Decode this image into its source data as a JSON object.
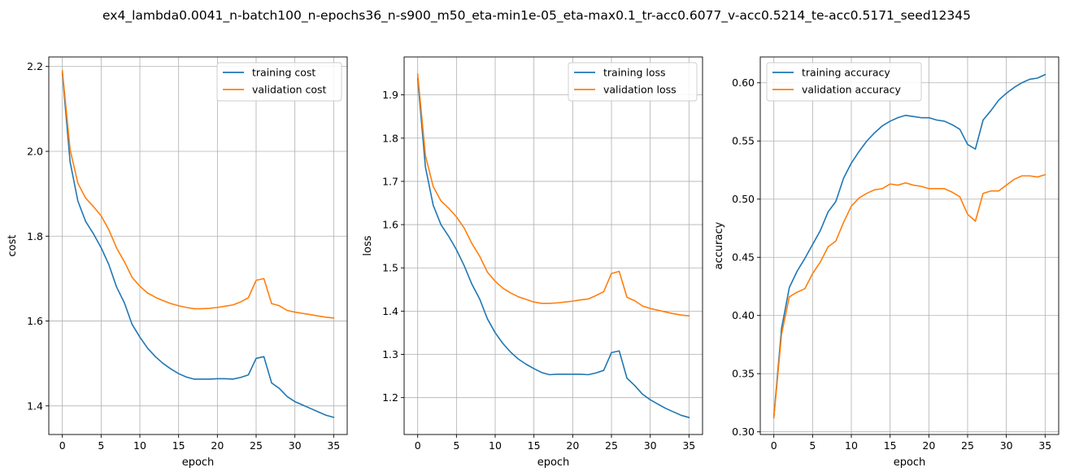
{
  "figure": {
    "title": "ex4_lambda0.0041_n-batch100_n-epochs36_n-s900_m50_eta-min1e-05_eta-max0.1_tr-acc0.6077_v-acc0.5214_te-acc0.5171_seed12345"
  },
  "colors": {
    "training": "#1f77b4",
    "validation": "#ff7f0e",
    "grid": "#b0b0b0"
  },
  "chart_data": [
    {
      "type": "line",
      "xlabel": "epoch",
      "ylabel": "cost",
      "xlim": [
        -1.75,
        36.75
      ],
      "ylim": [
        1.3325,
        2.2225
      ],
      "xticks": [
        0,
        5,
        10,
        15,
        20,
        25,
        30,
        35
      ],
      "yticks": [
        1.4,
        1.6,
        1.8,
        2.0,
        2.2
      ],
      "grid": true,
      "legend_position": "upper right",
      "x": [
        0,
        1,
        2,
        3,
        4,
        5,
        6,
        7,
        8,
        9,
        10,
        11,
        12,
        13,
        14,
        15,
        16,
        17,
        18,
        19,
        20,
        21,
        22,
        23,
        24,
        25,
        26,
        27,
        28,
        29,
        30,
        31,
        32,
        33,
        34,
        35
      ],
      "series": [
        {
          "name": "training cost",
          "color_key": "training",
          "values": [
            2.185,
            1.975,
            1.883,
            1.835,
            1.806,
            1.773,
            1.733,
            1.68,
            1.643,
            1.592,
            1.562,
            1.536,
            1.516,
            1.5,
            1.487,
            1.476,
            1.468,
            1.463,
            1.463,
            1.463,
            1.464,
            1.464,
            1.463,
            1.467,
            1.473,
            1.512,
            1.516,
            1.454,
            1.441,
            1.422,
            1.41,
            1.402,
            1.394,
            1.386,
            1.378,
            1.373
          ]
        },
        {
          "name": "validation cost",
          "color_key": "validation",
          "values": [
            2.19,
            2.004,
            1.925,
            1.89,
            1.87,
            1.848,
            1.815,
            1.772,
            1.74,
            1.703,
            1.682,
            1.666,
            1.656,
            1.648,
            1.641,
            1.636,
            1.632,
            1.629,
            1.629,
            1.63,
            1.632,
            1.635,
            1.638,
            1.645,
            1.655,
            1.696,
            1.7,
            1.641,
            1.636,
            1.625,
            1.621,
            1.618,
            1.615,
            1.612,
            1.609,
            1.607
          ]
        }
      ]
    },
    {
      "type": "line",
      "xlabel": "epoch",
      "ylabel": "loss",
      "xlim": [
        -1.75,
        36.75
      ],
      "ylim": [
        1.1147,
        1.9877
      ],
      "xticks": [
        0,
        5,
        10,
        15,
        20,
        25,
        30,
        35
      ],
      "yticks": [
        1.2,
        1.3,
        1.4,
        1.5,
        1.6,
        1.7,
        1.8,
        1.9
      ],
      "grid": true,
      "legend_position": "upper right",
      "x": [
        0,
        1,
        2,
        3,
        4,
        5,
        6,
        7,
        8,
        9,
        10,
        11,
        12,
        13,
        14,
        15,
        16,
        17,
        18,
        19,
        20,
        21,
        22,
        23,
        24,
        25,
        26,
        27,
        28,
        29,
        30,
        31,
        32,
        33,
        34,
        35
      ],
      "series": [
        {
          "name": "training loss",
          "color_key": "training",
          "values": [
            1.938,
            1.733,
            1.645,
            1.6,
            1.573,
            1.542,
            1.505,
            1.462,
            1.428,
            1.382,
            1.35,
            1.325,
            1.305,
            1.289,
            1.277,
            1.267,
            1.258,
            1.253,
            1.254,
            1.254,
            1.254,
            1.254,
            1.253,
            1.257,
            1.263,
            1.304,
            1.308,
            1.245,
            1.228,
            1.208,
            1.195,
            1.185,
            1.175,
            1.167,
            1.159,
            1.154
          ]
        },
        {
          "name": "validation loss",
          "color_key": "validation",
          "values": [
            1.948,
            1.76,
            1.688,
            1.655,
            1.638,
            1.618,
            1.592,
            1.556,
            1.527,
            1.49,
            1.469,
            1.453,
            1.442,
            1.433,
            1.427,
            1.421,
            1.418,
            1.418,
            1.419,
            1.421,
            1.423,
            1.426,
            1.428,
            1.436,
            1.445,
            1.487,
            1.492,
            1.432,
            1.424,
            1.412,
            1.406,
            1.402,
            1.398,
            1.394,
            1.391,
            1.389
          ]
        }
      ]
    },
    {
      "type": "line",
      "xlabel": "epoch",
      "ylabel": "accuracy",
      "xlim": [
        -1.75,
        36.75
      ],
      "ylim": [
        0.2977,
        0.6222
      ],
      "xticks": [
        0,
        5,
        10,
        15,
        20,
        25,
        30,
        35
      ],
      "yticks": [
        0.3,
        0.35,
        0.4,
        0.45,
        0.5,
        0.55,
        0.6
      ],
      "ytick_labels": [
        "0.30",
        "0.35",
        "0.40",
        "0.45",
        "0.50",
        "0.55",
        "0.60"
      ],
      "grid": true,
      "legend_position": "upper left",
      "x": [
        0,
        1,
        2,
        3,
        4,
        5,
        6,
        7,
        8,
        9,
        10,
        11,
        12,
        13,
        14,
        15,
        16,
        17,
        18,
        19,
        20,
        21,
        22,
        23,
        24,
        25,
        26,
        27,
        28,
        29,
        30,
        31,
        32,
        33,
        34,
        35
      ],
      "series": [
        {
          "name": "training accuracy",
          "color_key": "training",
          "values": [
            0.313,
            0.389,
            0.424,
            0.438,
            0.449,
            0.461,
            0.473,
            0.489,
            0.498,
            0.518,
            0.531,
            0.541,
            0.55,
            0.557,
            0.563,
            0.567,
            0.57,
            0.572,
            0.571,
            0.57,
            0.57,
            0.568,
            0.567,
            0.564,
            0.56,
            0.547,
            0.543,
            0.568,
            0.576,
            0.585,
            0.591,
            0.596,
            0.6,
            0.603,
            0.604,
            0.607
          ]
        },
        {
          "name": "validation accuracy",
          "color_key": "validation",
          "values": [
            0.312,
            0.384,
            0.416,
            0.42,
            0.423,
            0.436,
            0.446,
            0.459,
            0.464,
            0.48,
            0.494,
            0.501,
            0.505,
            0.508,
            0.509,
            0.513,
            0.512,
            0.514,
            0.512,
            0.511,
            0.509,
            0.509,
            0.509,
            0.506,
            0.502,
            0.487,
            0.481,
            0.505,
            0.507,
            0.507,
            0.512,
            0.517,
            0.52,
            0.52,
            0.519,
            0.521
          ]
        }
      ]
    }
  ]
}
